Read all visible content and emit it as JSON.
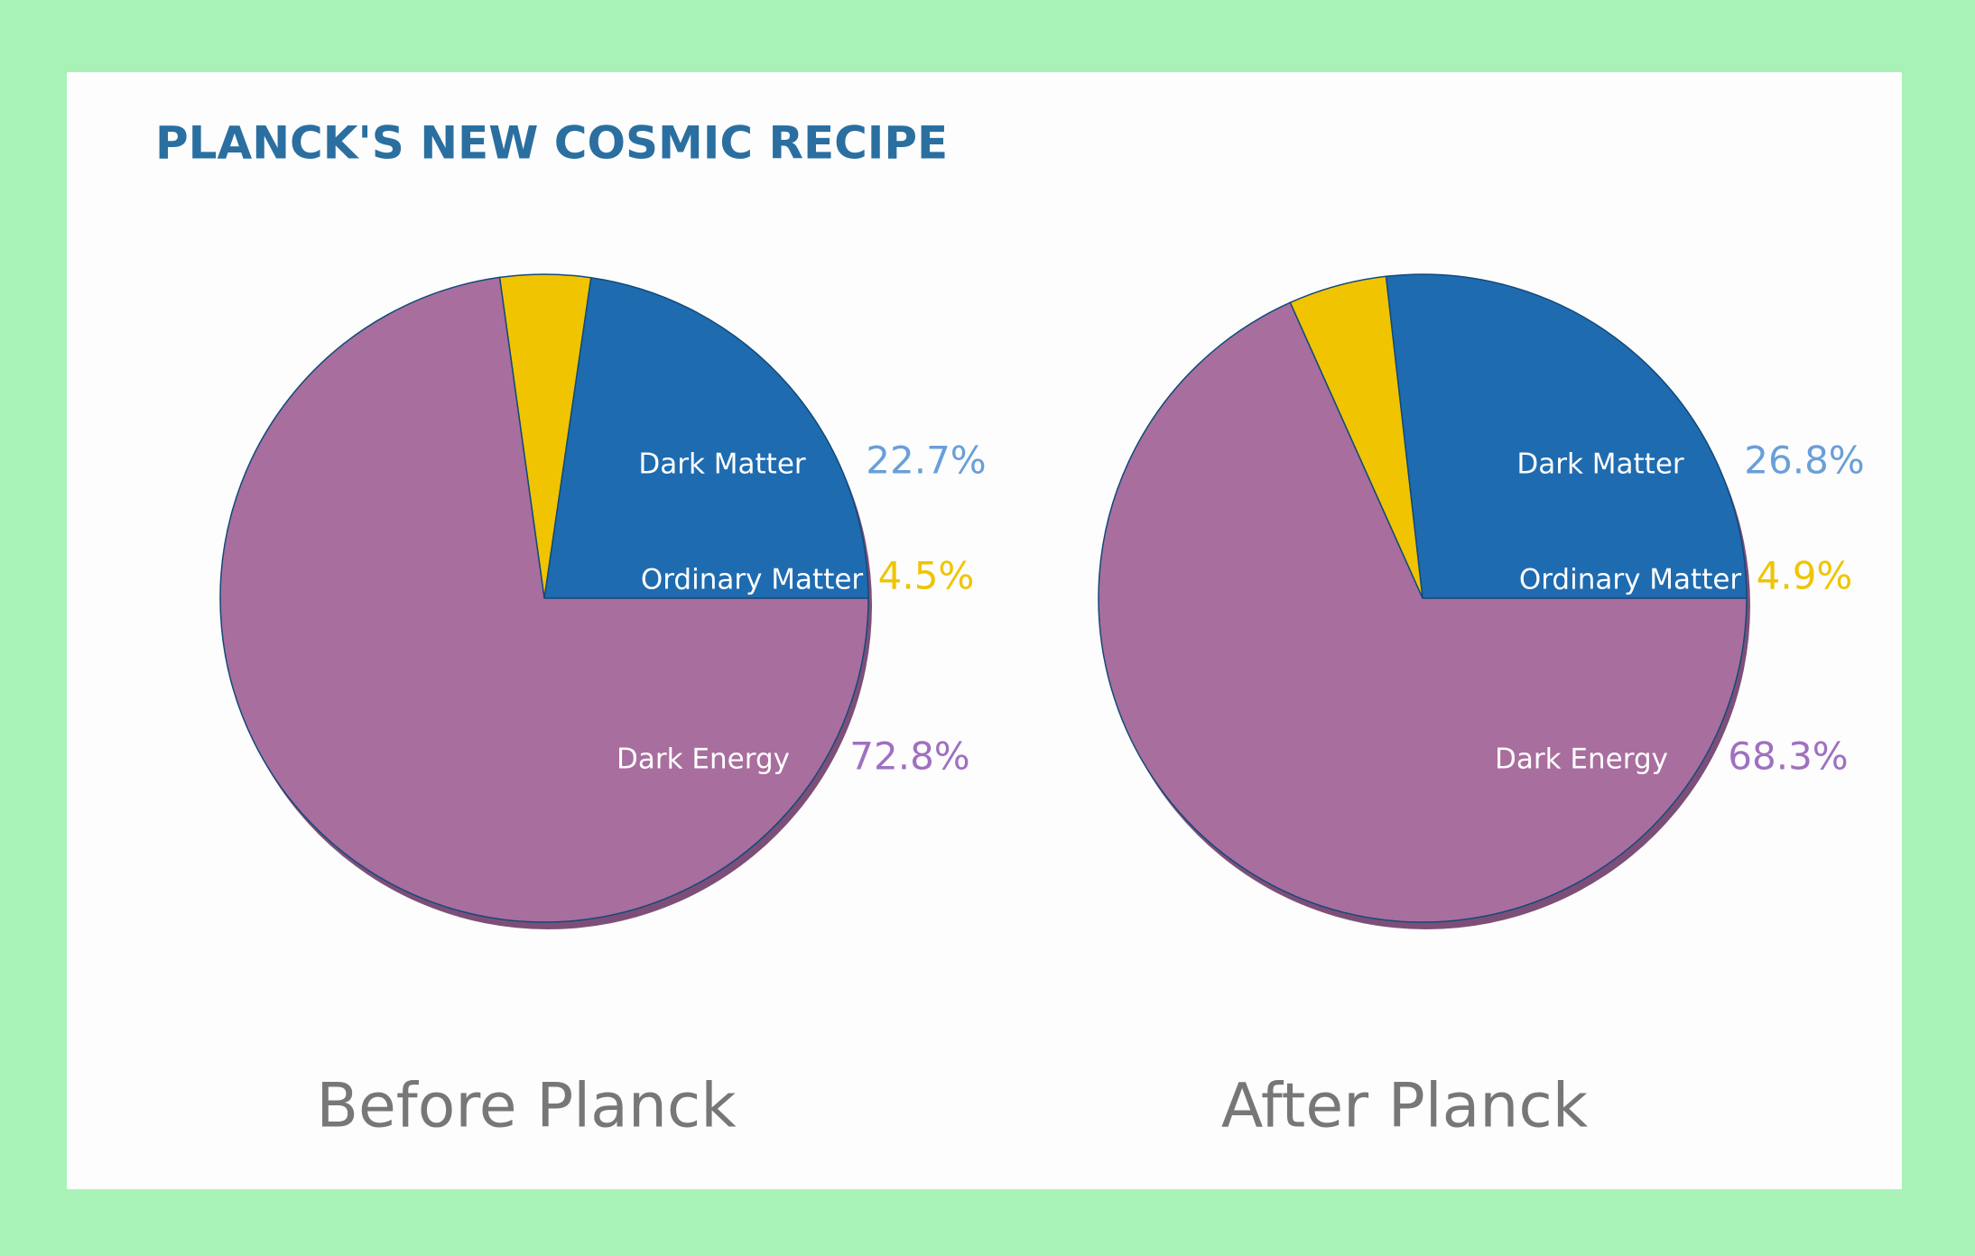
{
  "title": "PLANCK'S NEW COSMIC RECIPE",
  "chart_data": [
    {
      "type": "pie",
      "title": "Before Planck",
      "categories": [
        "Dark Matter",
        "Ordinary Matter",
        "Dark Energy"
      ],
      "values": [
        22.7,
        4.5,
        72.8
      ],
      "value_labels": [
        "22.7%",
        "4.5%",
        "72.8%"
      ],
      "colors": [
        "#1f6bb0",
        "#f0c400",
        "#a86e9e"
      ]
    },
    {
      "type": "pie",
      "title": "After Planck",
      "categories": [
        "Dark Matter",
        "Ordinary Matter",
        "Dark Energy"
      ],
      "values": [
        26.8,
        4.9,
        68.3
      ],
      "value_labels": [
        "26.8%",
        "4.9%",
        "68.3%"
      ],
      "colors": [
        "#1f6bb0",
        "#f0c400",
        "#a86e9e"
      ]
    }
  ]
}
